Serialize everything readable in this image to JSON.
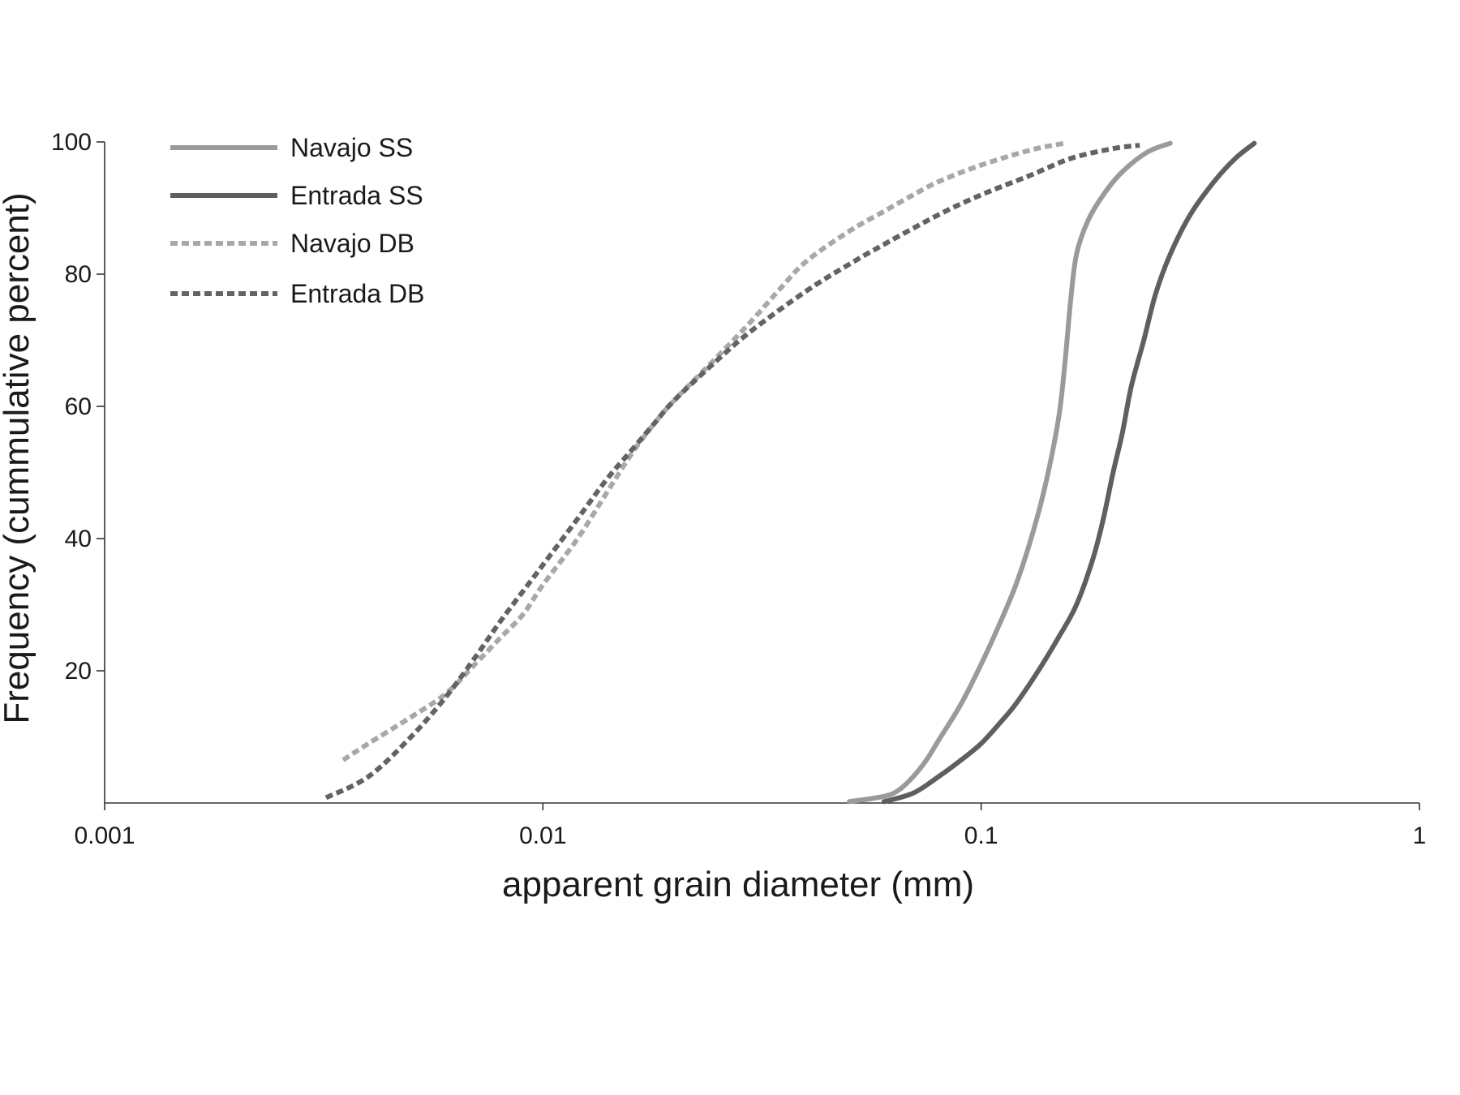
{
  "chart_data": {
    "type": "line",
    "title": "",
    "xlabel": "apparent grain diameter (mm)",
    "ylabel": "Frequency (cummulative percent)",
    "x_scale": "log",
    "xlim": [
      0.001,
      1
    ],
    "ylim": [
      0,
      100
    ],
    "x_ticks": [
      {
        "value": 0.001,
        "label": "0.001"
      },
      {
        "value": 0.01,
        "label": "0.01"
      },
      {
        "value": 0.1,
        "label": "0.1"
      },
      {
        "value": 1,
        "label": "1"
      }
    ],
    "y_ticks": [
      {
        "value": 20,
        "label": "20"
      },
      {
        "value": 40,
        "label": "40"
      },
      {
        "value": 60,
        "label": "60"
      },
      {
        "value": 80,
        "label": "80"
      },
      {
        "value": 100,
        "label": "100"
      }
    ],
    "grid": false,
    "legend_position": "top-left",
    "series": [
      {
        "name": "Navajo SS",
        "color": "#9a9a9a",
        "dash": "solid",
        "points": [
          [
            0.05,
            0.2
          ],
          [
            0.06,
            1
          ],
          [
            0.065,
            2
          ],
          [
            0.07,
            4
          ],
          [
            0.075,
            6.5
          ],
          [
            0.08,
            9.5
          ],
          [
            0.09,
            15
          ],
          [
            0.1,
            21
          ],
          [
            0.11,
            27
          ],
          [
            0.12,
            33
          ],
          [
            0.13,
            40
          ],
          [
            0.14,
            48
          ],
          [
            0.15,
            58
          ],
          [
            0.155,
            66
          ],
          [
            0.16,
            76
          ],
          [
            0.165,
            83
          ],
          [
            0.175,
            88
          ],
          [
            0.19,
            92
          ],
          [
            0.21,
            95.5
          ],
          [
            0.24,
            98.5
          ],
          [
            0.27,
            99.8
          ]
        ]
      },
      {
        "name": "Entrada SS",
        "color": "#5f5f5f",
        "dash": "solid",
        "points": [
          [
            0.06,
            0.2
          ],
          [
            0.07,
            1.5
          ],
          [
            0.08,
            4
          ],
          [
            0.09,
            6.5
          ],
          [
            0.1,
            9
          ],
          [
            0.11,
            12
          ],
          [
            0.12,
            15
          ],
          [
            0.135,
            20
          ],
          [
            0.15,
            25
          ],
          [
            0.165,
            30
          ],
          [
            0.18,
            37
          ],
          [
            0.19,
            43
          ],
          [
            0.2,
            50
          ],
          [
            0.21,
            56
          ],
          [
            0.22,
            63
          ],
          [
            0.235,
            70
          ],
          [
            0.25,
            77
          ],
          [
            0.27,
            83
          ],
          [
            0.3,
            89
          ],
          [
            0.34,
            94
          ],
          [
            0.38,
            97.5
          ],
          [
            0.42,
            99.8
          ]
        ]
      },
      {
        "name": "Navajo DB",
        "color": "#a8a8a8",
        "dash": "dashed",
        "points": [
          [
            0.0035,
            6.5
          ],
          [
            0.004,
            9
          ],
          [
            0.005,
            13
          ],
          [
            0.006,
            16.5
          ],
          [
            0.007,
            21
          ],
          [
            0.008,
            25
          ],
          [
            0.009,
            28.5
          ],
          [
            0.01,
            33
          ],
          [
            0.012,
            40
          ],
          [
            0.014,
            47
          ],
          [
            0.016,
            53
          ],
          [
            0.018,
            57.5
          ],
          [
            0.02,
            61
          ],
          [
            0.025,
            67.5
          ],
          [
            0.03,
            73
          ],
          [
            0.035,
            78
          ],
          [
            0.04,
            82
          ],
          [
            0.05,
            86.5
          ],
          [
            0.06,
            89.5
          ],
          [
            0.07,
            92
          ],
          [
            0.08,
            94
          ],
          [
            0.1,
            96.5
          ],
          [
            0.13,
            98.8
          ],
          [
            0.155,
            99.8
          ]
        ]
      },
      {
        "name": "Entrada DB",
        "color": "#636363",
        "dash": "dashed",
        "points": [
          [
            0.0032,
            0.8
          ],
          [
            0.004,
            4
          ],
          [
            0.005,
            10
          ],
          [
            0.006,
            16
          ],
          [
            0.007,
            22
          ],
          [
            0.008,
            27.5
          ],
          [
            0.009,
            32
          ],
          [
            0.01,
            36
          ],
          [
            0.012,
            43
          ],
          [
            0.014,
            49
          ],
          [
            0.016,
            53.5
          ],
          [
            0.018,
            57.5
          ],
          [
            0.02,
            61
          ],
          [
            0.025,
            67
          ],
          [
            0.03,
            71.5
          ],
          [
            0.04,
            77.5
          ],
          [
            0.05,
            81.5
          ],
          [
            0.06,
            84.5
          ],
          [
            0.08,
            89
          ],
          [
            0.1,
            92
          ],
          [
            0.13,
            95
          ],
          [
            0.16,
            97.5
          ],
          [
            0.2,
            99
          ],
          [
            0.23,
            99.5
          ]
        ]
      }
    ]
  }
}
